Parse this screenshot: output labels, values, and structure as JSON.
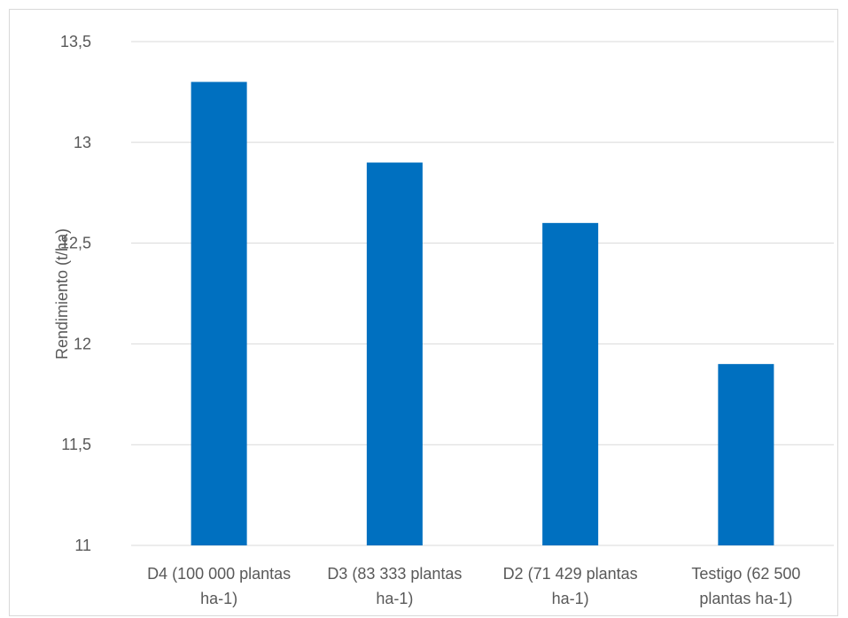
{
  "chart_data": {
    "type": "bar",
    "categories": [
      [
        "D4 (100 000 plantas",
        "ha-1)"
      ],
      [
        "D3 (83 333 plantas",
        "ha-1)"
      ],
      [
        "D2 (71 429 plantas",
        "ha-1)"
      ],
      [
        "Testigo (62 500",
        "plantas ha-1)"
      ]
    ],
    "values": [
      13.3,
      12.9,
      12.6,
      11.9
    ],
    "ylabel": "Rendimiento (t/ha)",
    "ylim": [
      11,
      13.5
    ],
    "yticks": [
      {
        "value": 11,
        "label": "11"
      },
      {
        "value": 11.5,
        "label": "11,5"
      },
      {
        "value": 12,
        "label": "12"
      },
      {
        "value": 12.5,
        "label": "12,5"
      },
      {
        "value": 13,
        "label": "13"
      },
      {
        "value": 13.5,
        "label": "13,5"
      }
    ],
    "grid": true,
    "bar_color": "#0070c0"
  }
}
